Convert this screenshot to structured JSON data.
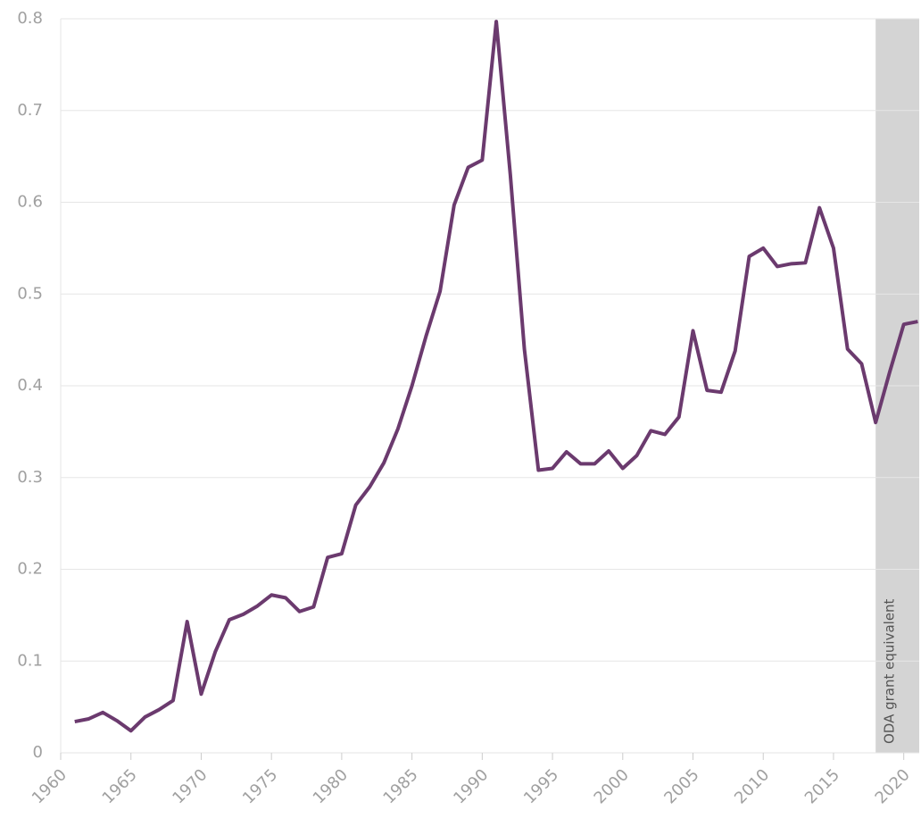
{
  "chart_data": {
    "type": "line",
    "x": [
      1961,
      1962,
      1963,
      1964,
      1965,
      1966,
      1967,
      1968,
      1969,
      1970,
      1971,
      1972,
      1973,
      1974,
      1975,
      1976,
      1977,
      1978,
      1979,
      1980,
      1981,
      1982,
      1983,
      1984,
      1985,
      1986,
      1987,
      1988,
      1989,
      1990,
      1991,
      1992,
      1993,
      1994,
      1995,
      1996,
      1997,
      1998,
      1999,
      2000,
      2001,
      2002,
      2003,
      2004,
      2005,
      2006,
      2007,
      2008,
      2009,
      2010,
      2011,
      2012,
      2013,
      2014,
      2015,
      2016,
      2017,
      2018,
      2019,
      2020,
      2021
    ],
    "series": [
      {
        "color": "#6b3a6e",
        "values": [
          0.034,
          0.037,
          0.044,
          0.035,
          0.024,
          0.039,
          0.047,
          0.057,
          0.143,
          0.064,
          0.11,
          0.145,
          0.151,
          0.16,
          0.172,
          0.169,
          0.154,
          0.159,
          0.213,
          0.217,
          0.27,
          0.29,
          0.316,
          0.353,
          0.4,
          0.454,
          0.503,
          0.597,
          0.638,
          0.646,
          0.797,
          0.63,
          0.44,
          0.308,
          0.31,
          0.328,
          0.315,
          0.315,
          0.329,
          0.31,
          0.324,
          0.351,
          0.347,
          0.366,
          0.46,
          0.395,
          0.393,
          0.438,
          0.541,
          0.55,
          0.53,
          0.533,
          0.534,
          0.594,
          0.55,
          0.44,
          0.424,
          0.36,
          0.415,
          0.467,
          0.47
        ]
      }
    ],
    "xlim": [
      1960,
      2021.1
    ],
    "xticks": [
      1960,
      1965,
      1970,
      1975,
      1980,
      1985,
      1990,
      1995,
      2000,
      2005,
      2010,
      2015,
      2020
    ],
    "ylim": [
      0,
      0.8
    ],
    "yticks": [
      0,
      0.1,
      0.2,
      0.3,
      0.4,
      0.5,
      0.6,
      0.7,
      0.8
    ],
    "grid": true,
    "shaded_region": {
      "x": [
        2018,
        2021.1
      ],
      "color": "#d4d4d4",
      "label": "ODA grant equivalent"
    }
  }
}
